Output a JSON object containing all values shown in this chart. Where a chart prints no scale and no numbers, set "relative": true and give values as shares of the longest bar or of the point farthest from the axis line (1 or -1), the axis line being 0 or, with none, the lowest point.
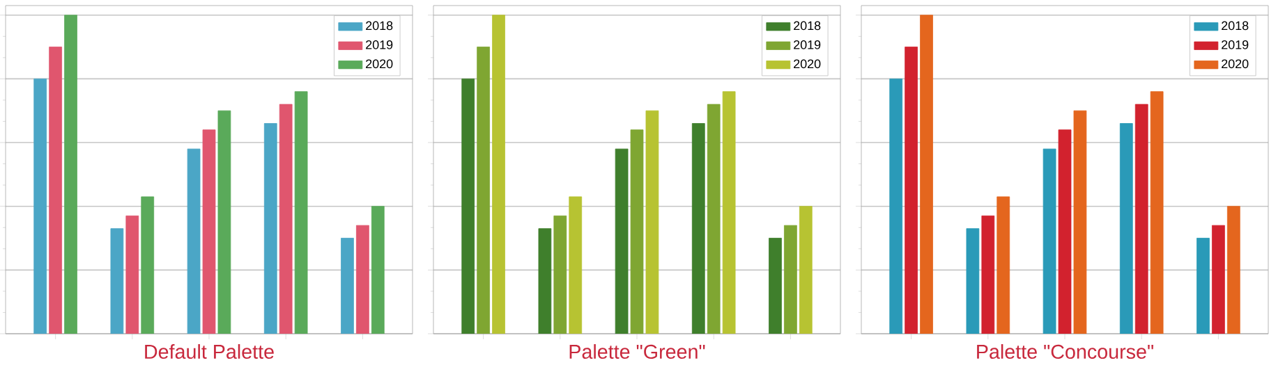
{
  "chart_data": [
    {
      "type": "bar",
      "title": "Default Palette",
      "relative": true,
      "categories": [
        null,
        null,
        null,
        null,
        null
      ],
      "grid": "y",
      "legend": "top right",
      "series": [
        {
          "name": "2018",
          "color": "#4ba6c6",
          "values": [
            0.8,
            0.33,
            0.58,
            0.66,
            0.3
          ]
        },
        {
          "name": "2019",
          "color": "#e0566e",
          "values": [
            0.9,
            0.37,
            0.64,
            0.72,
            0.34
          ]
        },
        {
          "name": "2020",
          "color": "#5aaa5a",
          "values": [
            1.0,
            0.43,
            0.7,
            0.76,
            0.4
          ]
        }
      ]
    },
    {
      "type": "bar",
      "title": "Palette \"Green\"",
      "relative": true,
      "categories": [
        null,
        null,
        null,
        null,
        null
      ],
      "grid": "y",
      "legend": "top right",
      "series": [
        {
          "name": "2018",
          "color": "#3f7f2c",
          "values": [
            0.8,
            0.33,
            0.58,
            0.66,
            0.3
          ]
        },
        {
          "name": "2019",
          "color": "#7fa632",
          "values": [
            0.9,
            0.37,
            0.64,
            0.72,
            0.34
          ]
        },
        {
          "name": "2020",
          "color": "#b7c332",
          "values": [
            1.0,
            0.43,
            0.7,
            0.76,
            0.4
          ]
        }
      ]
    },
    {
      "type": "bar",
      "title": "Palette \"Concourse\"",
      "relative": true,
      "categories": [
        null,
        null,
        null,
        null,
        null
      ],
      "grid": "y",
      "legend": "top right",
      "series": [
        {
          "name": "2018",
          "color": "#2a9ab8",
          "values": [
            0.8,
            0.33,
            0.58,
            0.66,
            0.3
          ]
        },
        {
          "name": "2019",
          "color": "#d2222e",
          "values": [
            0.9,
            0.37,
            0.64,
            0.72,
            0.34
          ]
        },
        {
          "name": "2020",
          "color": "#e4661e",
          "values": [
            1.0,
            0.43,
            0.7,
            0.76,
            0.4
          ]
        }
      ]
    }
  ]
}
